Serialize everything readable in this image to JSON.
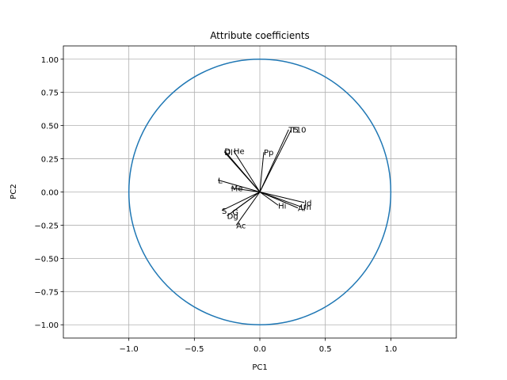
{
  "chart_data": {
    "type": "scatter",
    "title": "Attribute coefficients",
    "xlabel": "PC1",
    "ylabel": "PC2",
    "xlim": [
      -1.5,
      1.5
    ],
    "ylim": [
      -1.1,
      1.1
    ],
    "grid": true,
    "x_ticks": [
      -1.0,
      -0.5,
      0.0,
      0.5,
      1.0
    ],
    "x_tick_labels": [
      "−1.0",
      "−0.5",
      "0.0",
      "0.5",
      "1.0"
    ],
    "y_ticks": [
      1.0,
      0.75,
      0.5,
      0.25,
      0.0,
      -0.25,
      -0.5,
      -0.75,
      -1.0
    ],
    "y_tick_labels": [
      "1.00",
      "0.75",
      "0.50",
      "0.25",
      "0.00",
      "−0.25",
      "−0.50",
      "−0.75",
      "−1.00"
    ],
    "circle": {
      "center": [
        0,
        0
      ],
      "radius": 1.0,
      "color": "#1f77b4"
    },
    "vector_color": "#000000",
    "vectors": [
      {
        "label": "T5",
        "x": 0.22,
        "y": 0.47
      },
      {
        "label": "T10",
        "x": 0.24,
        "y": 0.47
      },
      {
        "label": "Pp",
        "x": 0.03,
        "y": 0.3
      },
      {
        "label": "D",
        "x": -0.27,
        "y": 0.31
      },
      {
        "label": "Dl",
        "x": -0.27,
        "y": 0.3
      },
      {
        "label": "He",
        "x": -0.2,
        "y": 0.31
      },
      {
        "label": "L",
        "x": -0.32,
        "y": 0.09
      },
      {
        "label": "Me",
        "x": -0.22,
        "y": 0.03
      },
      {
        "label": "S",
        "x": -0.29,
        "y": -0.14
      },
      {
        "label": "Dg",
        "x": -0.25,
        "y": -0.18
      },
      {
        "label": "G",
        "x": -0.21,
        "y": -0.15
      },
      {
        "label": "Ac",
        "x": -0.18,
        "y": -0.25
      },
      {
        "label": "Hi",
        "x": 0.14,
        "y": -0.1
      },
      {
        "label": "Id",
        "x": 0.34,
        "y": -0.08
      },
      {
        "label": "Al",
        "x": 0.29,
        "y": -0.12
      },
      {
        "label": "Un",
        "x": 0.31,
        "y": -0.11
      }
    ]
  }
}
